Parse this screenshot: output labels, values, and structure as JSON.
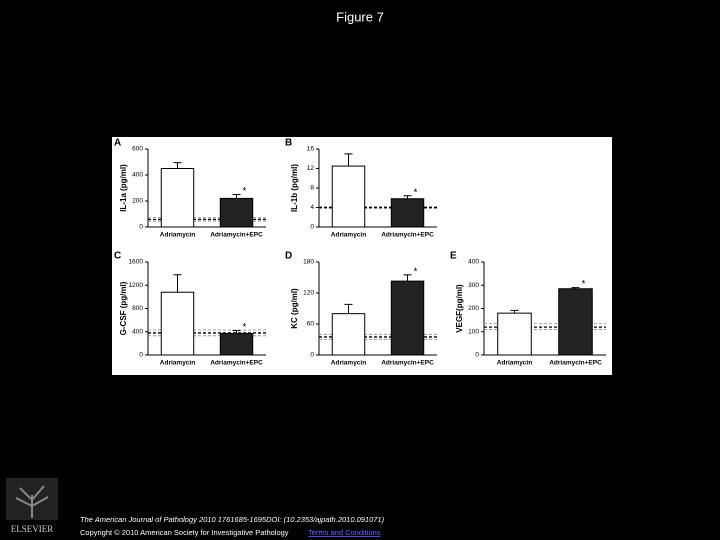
{
  "title": "Figure 7",
  "chart_data": [
    {
      "type": "bar",
      "panel": "A",
      "ylabel": "IL-1a (pg/ml)",
      "categories": [
        "Adriamycin",
        "Adriamycin+EPC"
      ],
      "values": [
        450,
        220
      ],
      "errors": [
        45,
        30
      ],
      "value_annotations": [
        null,
        "*"
      ],
      "colors": [
        "#ffffff",
        "#222222"
      ],
      "ylim": [
        0,
        600
      ],
      "yticks": [
        0,
        200,
        400,
        600
      ],
      "reference_lines": [
        45,
        58,
        72
      ]
    },
    {
      "type": "bar",
      "panel": "B",
      "ylabel": "IL-1b (pg/ml)",
      "categories": [
        "Adriamycin",
        "Adriamycin+EPC"
      ],
      "values": [
        12.5,
        5.8
      ],
      "errors": [
        2.5,
        0.6
      ],
      "value_annotations": [
        null,
        "*"
      ],
      "colors": [
        "#ffffff",
        "#222222"
      ],
      "ylim": [
        0,
        16
      ],
      "yticks": [
        0,
        4,
        8,
        12,
        16
      ],
      "reference_lines": [
        3.8,
        4,
        4.2
      ]
    },
    {
      "type": "bar",
      "panel": "C",
      "ylabel": "G-CSF (pg/ml)",
      "categories": [
        "Adriamycin",
        "Adriamycin+EPC"
      ],
      "values": [
        1080,
        370
      ],
      "errors": [
        300,
        50
      ],
      "value_annotations": [
        null,
        "*"
      ],
      "colors": [
        "#ffffff",
        "#222222"
      ],
      "ylim": [
        0,
        1600
      ],
      "yticks": [
        0,
        400,
        800,
        1200,
        1600
      ],
      "reference_lines": [
        330,
        380,
        430
      ]
    },
    {
      "type": "bar",
      "panel": "D",
      "ylabel": "KC (pg/ml)",
      "categories": [
        "Adriamycin",
        "Adriamycin+EPC"
      ],
      "values": [
        80,
        143
      ],
      "errors": [
        18,
        12
      ],
      "value_annotations": [
        null,
        "*"
      ],
      "colors": [
        "#ffffff",
        "#222222"
      ],
      "ylim": [
        0,
        180
      ],
      "yticks": [
        0,
        60,
        120,
        180
      ],
      "reference_lines": [
        30,
        35,
        40
      ]
    },
    {
      "type": "bar",
      "panel": "E",
      "ylabel": "VEGF(pg/ml)",
      "categories": [
        "Adriamycin",
        "Adriamycin+EPC"
      ],
      "values": [
        180,
        285
      ],
      "errors": [
        12,
        5
      ],
      "value_annotations": [
        null,
        "*"
      ],
      "colors": [
        "#ffffff",
        "#222222"
      ],
      "ylim": [
        0,
        400
      ],
      "yticks": [
        0,
        100,
        200,
        300,
        400
      ],
      "reference_lines": [
        110,
        120,
        135
      ]
    }
  ],
  "footer": {
    "citation": "The American Journal of Pathology 2010 1761685-1695DOI: (10.2353/ajpath.2010.091071)",
    "copyright": "Copyright © 2010 American Society for Investigative Pathology",
    "link": "Terms and Conditions"
  },
  "logo": "ELSEVIER"
}
